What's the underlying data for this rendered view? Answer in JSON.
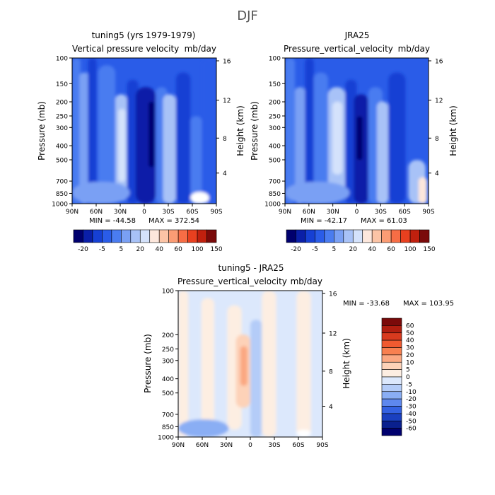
{
  "figure": {
    "title": "DJF",
    "title_color": "#555555"
  },
  "chart_data": [
    {
      "type": "heatmap",
      "title": "tuning5 (yrs 1979-1979)",
      "subtitle_left": "Vertical pressure velocity",
      "subtitle_right": "mb/day",
      "xlabel": "",
      "ylabel": "Pressure (mb)",
      "ylabel_right": "Height (km)",
      "x_ticks": [
        "90N",
        "60N",
        "30N",
        "0",
        "30S",
        "60S",
        "90S"
      ],
      "y_ticks": [
        "100",
        "150",
        "200",
        "250",
        "300",
        "400",
        "500",
        "700",
        "850",
        "1000"
      ],
      "y_ticks_right": [
        "16",
        "12",
        "8",
        "4"
      ],
      "min_text": "MIN = -44.58",
      "max_text": "MAX = 372.54",
      "colorbar_labels": [
        "-20",
        "-5",
        "5",
        "20",
        "40",
        "60",
        "100",
        "150"
      ],
      "colors": [
        "#00006e",
        "#0a1fa8",
        "#1640d4",
        "#2a5ce8",
        "#4a7cf0",
        "#7aa0f4",
        "#a8c2f7",
        "#d4e2fb",
        "#fde7dc",
        "#fcc4a6",
        "#fb9c74",
        "#f76d45",
        "#e8401f",
        "#c0200e",
        "#7a0a0a"
      ]
    },
    {
      "type": "heatmap",
      "title": "JRA25",
      "subtitle_left": "Pressure_vertical_velocity",
      "subtitle_right": "mb/day",
      "xlabel": "",
      "ylabel": "Pressure (mb)",
      "ylabel_right": "Height (km)",
      "x_ticks": [
        "90N",
        "60N",
        "30N",
        "0",
        "30S",
        "60S",
        "90S"
      ],
      "y_ticks": [
        "100",
        "150",
        "200",
        "250",
        "300",
        "400",
        "500",
        "700",
        "850",
        "1000"
      ],
      "y_ticks_right": [
        "16",
        "12",
        "8",
        "4"
      ],
      "min_text": "MIN = -42.17",
      "max_text": "MAX =  61.03",
      "colorbar_labels": [
        "-20",
        "-5",
        "5",
        "20",
        "40",
        "60",
        "100",
        "150"
      ],
      "colors": [
        "#00006e",
        "#0a1fa8",
        "#1640d4",
        "#2a5ce8",
        "#4a7cf0",
        "#7aa0f4",
        "#a8c2f7",
        "#d4e2fb",
        "#fde7dc",
        "#fcc4a6",
        "#fb9c74",
        "#f76d45",
        "#e8401f",
        "#c0200e",
        "#7a0a0a"
      ]
    },
    {
      "type": "heatmap",
      "title": "tuning5 - JRA25",
      "subtitle_left": "Pressure_vertical_velocity",
      "subtitle_right": "mb/day",
      "xlabel": "",
      "ylabel": "Pressure (mb)",
      "ylabel_right": "Height (km)",
      "x_ticks": [
        "90N",
        "60N",
        "30N",
        "0",
        "30S",
        "60S",
        "90S"
      ],
      "y_ticks": [
        "100",
        "200",
        "250",
        "300",
        "400",
        "500",
        "700",
        "850",
        "1000"
      ],
      "y_ticks_right": [
        "16",
        "12",
        "8",
        "4"
      ],
      "min_text": "MIN = -33.68",
      "max_text": "MAX = 103.95",
      "colorbar_labels": [
        "60",
        "50",
        "40",
        "30",
        "20",
        "10",
        "5",
        "0",
        "-5",
        "-10",
        "-20",
        "-30",
        "-40",
        "-50",
        "-60"
      ],
      "colors": [
        "#7a0a0a",
        "#b01e10",
        "#d83a1e",
        "#f05a30",
        "#f88050",
        "#fba882",
        "#fdd2b8",
        "#fdeee2",
        "#dce8fc",
        "#b4ccf8",
        "#8aaef4",
        "#5e88ee",
        "#3462e2",
        "#1a40c0",
        "#0a208e",
        "#00006e"
      ]
    }
  ]
}
